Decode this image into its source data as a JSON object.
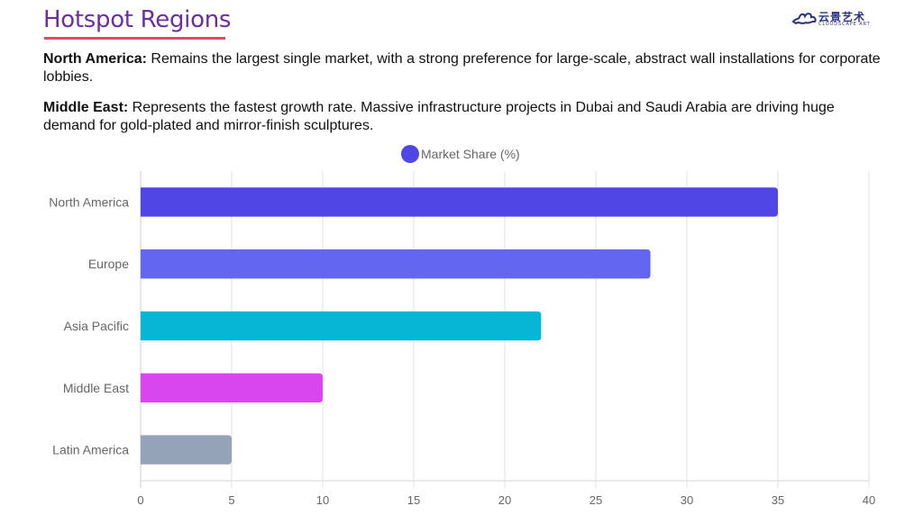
{
  "header": {
    "title": "Hotspot Regions",
    "logo": {
      "name_cn": "云景艺术",
      "name_en": "CLOUDSCAPE ART"
    }
  },
  "paragraphs": [
    {
      "label": "North America:",
      "text": " Remains the largest single market, with a strong preference for large-scale, abstract wall installations for corporate lobbies."
    },
    {
      "label": "Middle East:",
      "text": " Represents the fastest growth rate. Massive infrastructure projects in Dubai and Saudi Arabia are driving huge demand for gold-plated and mirror-finish sculptures."
    }
  ],
  "chart_data": {
    "type": "bar",
    "orientation": "horizontal",
    "title": "",
    "xlabel": "",
    "ylabel": "",
    "legend": {
      "position": "top-center",
      "entries": [
        {
          "label": "Market Share (%)",
          "color": "#4f46e5"
        }
      ]
    },
    "categories": [
      "North America",
      "Europe",
      "Asia Pacific",
      "Middle East",
      "Latin America"
    ],
    "series": [
      {
        "name": "Market Share (%)",
        "values": [
          35,
          28,
          22,
          10,
          5
        ],
        "colors": [
          "#4f46e5",
          "#6366f1",
          "#06b6d4",
          "#d946ef",
          "#94a3b8"
        ]
      }
    ],
    "xlim": [
      0,
      40
    ],
    "xticks": [
      0,
      5,
      10,
      15,
      20,
      25,
      30,
      35,
      40
    ],
    "grid": true
  }
}
